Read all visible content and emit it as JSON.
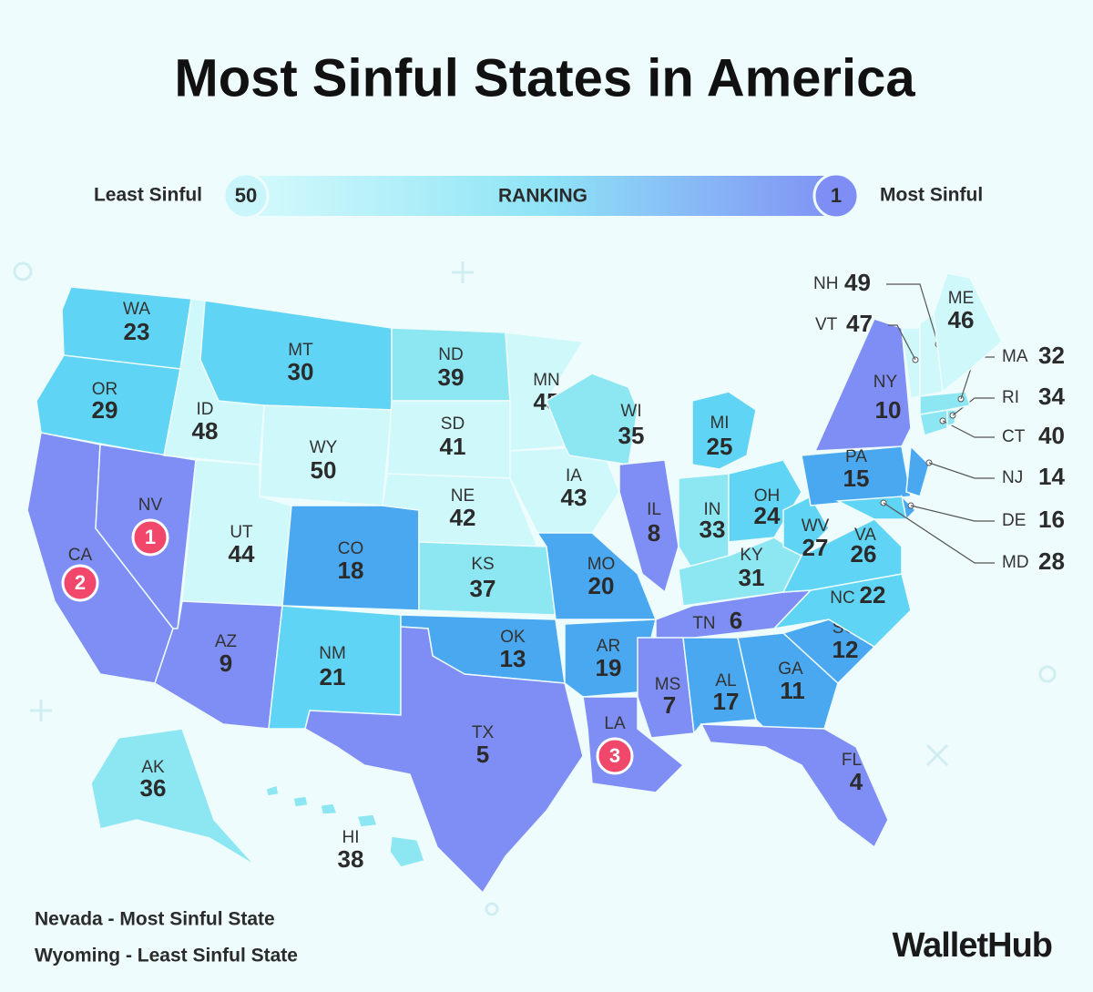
{
  "title": "Most Sinful States in America",
  "legend": {
    "left_label": "Least Sinful",
    "left_value": 50,
    "center_label": "RANKING",
    "right_value": 1,
    "right_label": "Most Sinful"
  },
  "states": [
    {
      "abbr": "WA",
      "rank": 23
    },
    {
      "abbr": "OR",
      "rank": 29
    },
    {
      "abbr": "CA",
      "rank": 2
    },
    {
      "abbr": "NV",
      "rank": 1
    },
    {
      "abbr": "ID",
      "rank": 48
    },
    {
      "abbr": "MT",
      "rank": 30
    },
    {
      "abbr": "WY",
      "rank": 50
    },
    {
      "abbr": "UT",
      "rank": 44
    },
    {
      "abbr": "CO",
      "rank": 18
    },
    {
      "abbr": "AZ",
      "rank": 9
    },
    {
      "abbr": "NM",
      "rank": 21
    },
    {
      "abbr": "ND",
      "rank": 39
    },
    {
      "abbr": "SD",
      "rank": 41
    },
    {
      "abbr": "NE",
      "rank": 42
    },
    {
      "abbr": "KS",
      "rank": 37
    },
    {
      "abbr": "OK",
      "rank": 13
    },
    {
      "abbr": "TX",
      "rank": 5
    },
    {
      "abbr": "MN",
      "rank": 45
    },
    {
      "abbr": "IA",
      "rank": 43
    },
    {
      "abbr": "MO",
      "rank": 20
    },
    {
      "abbr": "AR",
      "rank": 19
    },
    {
      "abbr": "LA",
      "rank": 3
    },
    {
      "abbr": "WI",
      "rank": 35
    },
    {
      "abbr": "IL",
      "rank": 8
    },
    {
      "abbr": "MI",
      "rank": 25
    },
    {
      "abbr": "IN",
      "rank": 33
    },
    {
      "abbr": "OH",
      "rank": 24
    },
    {
      "abbr": "KY",
      "rank": 31
    },
    {
      "abbr": "TN",
      "rank": 6
    },
    {
      "abbr": "MS",
      "rank": 7
    },
    {
      "abbr": "AL",
      "rank": 17
    },
    {
      "abbr": "GA",
      "rank": 11
    },
    {
      "abbr": "FL",
      "rank": 4
    },
    {
      "abbr": "SC",
      "rank": 12
    },
    {
      "abbr": "NC",
      "rank": 22
    },
    {
      "abbr": "VA",
      "rank": 26
    },
    {
      "abbr": "WV",
      "rank": 27
    },
    {
      "abbr": "PA",
      "rank": 15
    },
    {
      "abbr": "NY",
      "rank": 10
    },
    {
      "abbr": "NJ",
      "rank": 14
    },
    {
      "abbr": "DE",
      "rank": 16
    },
    {
      "abbr": "MD",
      "rank": 28
    },
    {
      "abbr": "CT",
      "rank": 40
    },
    {
      "abbr": "RI",
      "rank": 34
    },
    {
      "abbr": "MA",
      "rank": 32
    },
    {
      "abbr": "VT",
      "rank": 47
    },
    {
      "abbr": "NH",
      "rank": 49
    },
    {
      "abbr": "ME",
      "rank": 46
    },
    {
      "abbr": "AK",
      "rank": 36
    },
    {
      "abbr": "HI",
      "rank": 38
    }
  ],
  "footnotes": [
    "Nevada - Most Sinful State",
    "Wyoming - Least Sinful State"
  ],
  "brand": "WalletHub"
}
